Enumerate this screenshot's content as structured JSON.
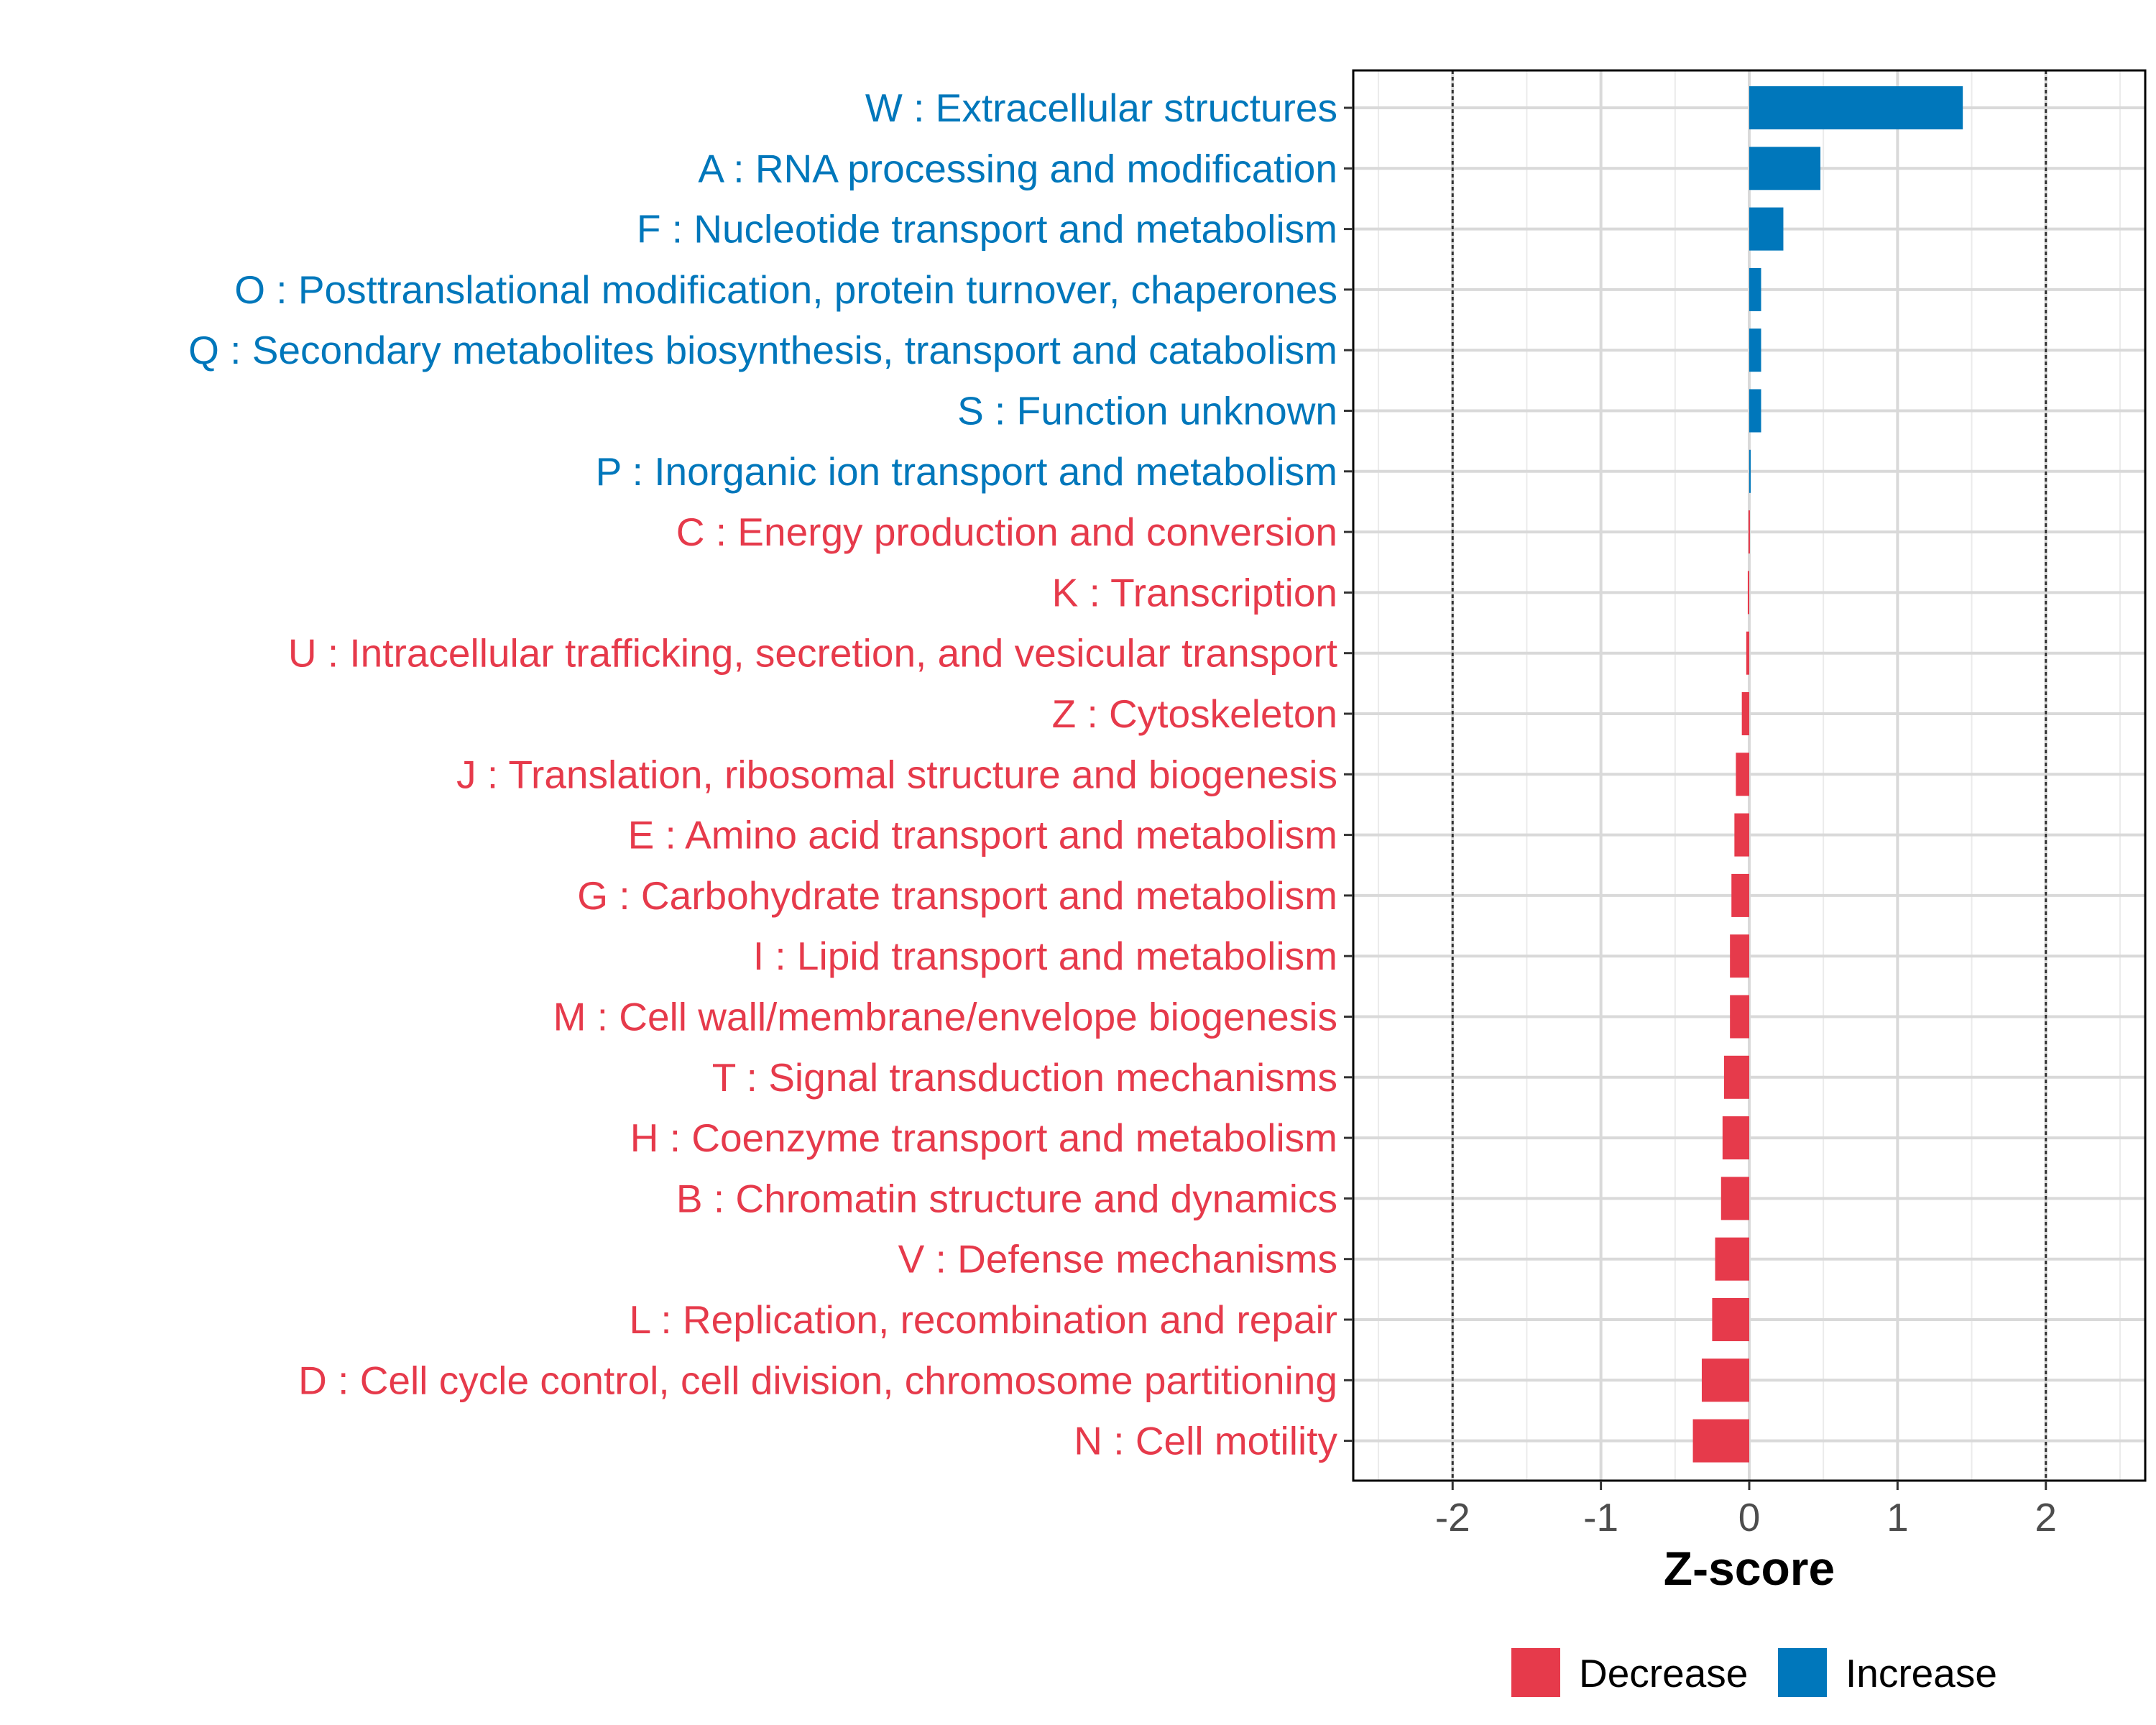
{
  "chart_data": {
    "type": "bar",
    "orientation": "horizontal",
    "title": "",
    "xlabel": "Z-score",
    "ylabel": "",
    "xlim": [
      -2.67,
      2.67
    ],
    "xticks": [
      -2,
      -1,
      0,
      1,
      2
    ],
    "xtick_labels": [
      "-2",
      "-1",
      "0",
      "1",
      "2"
    ],
    "reference_lines": [
      -2,
      2
    ],
    "grid": true,
    "legend_position": "bottom",
    "colors": {
      "Decrease": "#e63a4b",
      "Increase": "#0077bb"
    },
    "legend": [
      {
        "label": "Decrease",
        "color": "#e63a4b"
      },
      {
        "label": "Increase",
        "color": "#0077bb"
      }
    ],
    "bars": [
      {
        "label": "W : Extracellular structures",
        "value": 1.44,
        "direction": "Increase"
      },
      {
        "label": "A : RNA processing and modification",
        "value": 0.48,
        "direction": "Increase"
      },
      {
        "label": "F : Nucleotide transport and metabolism",
        "value": 0.23,
        "direction": "Increase"
      },
      {
        "label": "O : Posttranslational modification, protein turnover, chaperones",
        "value": 0.08,
        "direction": "Increase"
      },
      {
        "label": "Q : Secondary metabolites biosynthesis, transport and catabolism",
        "value": 0.08,
        "direction": "Increase"
      },
      {
        "label": "S : Function unknown",
        "value": 0.08,
        "direction": "Increase"
      },
      {
        "label": "P : Inorganic ion transport and metabolism",
        "value": 0.01,
        "direction": "Increase"
      },
      {
        "label": "C : Energy production and conversion",
        "value": -0.005,
        "direction": "Decrease"
      },
      {
        "label": "K : Transcription",
        "value": -0.01,
        "direction": "Decrease"
      },
      {
        "label": "U : Intracellular trafficking, secretion, and vesicular transport",
        "value": -0.02,
        "direction": "Decrease"
      },
      {
        "label": "Z : Cytoskeleton",
        "value": -0.05,
        "direction": "Decrease"
      },
      {
        "label": "J : Translation, ribosomal structure and biogenesis",
        "value": -0.09,
        "direction": "Decrease"
      },
      {
        "label": "E : Amino acid transport and metabolism",
        "value": -0.1,
        "direction": "Decrease"
      },
      {
        "label": "G : Carbohydrate transport and metabolism",
        "value": -0.12,
        "direction": "Decrease"
      },
      {
        "label": "I : Lipid transport and metabolism",
        "value": -0.13,
        "direction": "Decrease"
      },
      {
        "label": "M : Cell wall/membrane/envelope biogenesis",
        "value": -0.13,
        "direction": "Decrease"
      },
      {
        "label": "T : Signal transduction mechanisms",
        "value": -0.17,
        "direction": "Decrease"
      },
      {
        "label": "H : Coenzyme transport and metabolism",
        "value": -0.18,
        "direction": "Decrease"
      },
      {
        "label": "B : Chromatin structure and dynamics",
        "value": -0.19,
        "direction": "Decrease"
      },
      {
        "label": "V : Defense mechanisms",
        "value": -0.23,
        "direction": "Decrease"
      },
      {
        "label": "L : Replication, recombination and repair",
        "value": -0.25,
        "direction": "Decrease"
      },
      {
        "label": "D : Cell cycle control, cell division, chromosome partitioning",
        "value": -0.32,
        "direction": "Decrease"
      },
      {
        "label": "N : Cell motility",
        "value": -0.38,
        "direction": "Decrease"
      }
    ]
  }
}
